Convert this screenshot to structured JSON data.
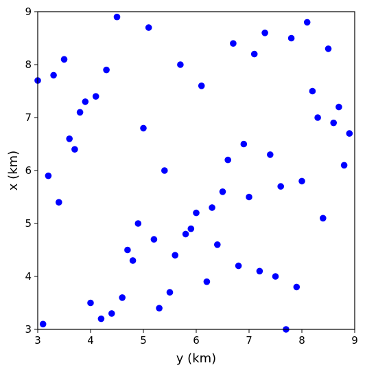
{
  "chart_data": {
    "type": "scatter",
    "title": "",
    "xlabel": "y (km)",
    "ylabel": "x (km)",
    "xlim": [
      3,
      9
    ],
    "ylim": [
      3,
      9
    ],
    "xticks": [
      3,
      4,
      5,
      6,
      7,
      8,
      9
    ],
    "yticks": [
      3,
      4,
      5,
      6,
      7,
      8,
      9
    ],
    "grid": false,
    "legend": "none",
    "marker_color": "#0000ff",
    "points": [
      {
        "x": 3.0,
        "y": 7.7
      },
      {
        "x": 3.1,
        "y": 3.1
      },
      {
        "x": 3.2,
        "y": 5.9
      },
      {
        "x": 3.3,
        "y": 7.8
      },
      {
        "x": 3.4,
        "y": 5.4
      },
      {
        "x": 3.5,
        "y": 8.1
      },
      {
        "x": 3.6,
        "y": 6.6
      },
      {
        "x": 3.7,
        "y": 6.4
      },
      {
        "x": 3.8,
        "y": 7.1
      },
      {
        "x": 3.9,
        "y": 7.3
      },
      {
        "x": 4.0,
        "y": 3.5
      },
      {
        "x": 4.1,
        "y": 7.4
      },
      {
        "x": 4.2,
        "y": 3.2
      },
      {
        "x": 4.3,
        "y": 7.9
      },
      {
        "x": 4.4,
        "y": 3.3
      },
      {
        "x": 4.5,
        "y": 8.9
      },
      {
        "x": 4.6,
        "y": 3.6
      },
      {
        "x": 4.7,
        "y": 4.5
      },
      {
        "x": 4.8,
        "y": 4.3
      },
      {
        "x": 4.9,
        "y": 5.0
      },
      {
        "x": 5.0,
        "y": 6.8
      },
      {
        "x": 5.1,
        "y": 8.7
      },
      {
        "x": 5.2,
        "y": 4.7
      },
      {
        "x": 5.3,
        "y": 3.4
      },
      {
        "x": 5.4,
        "y": 6.0
      },
      {
        "x": 5.5,
        "y": 3.7
      },
      {
        "x": 5.6,
        "y": 4.4
      },
      {
        "x": 5.7,
        "y": 8.0
      },
      {
        "x": 5.8,
        "y": 4.8
      },
      {
        "x": 5.9,
        "y": 4.9
      },
      {
        "x": 6.0,
        "y": 5.2
      },
      {
        "x": 6.1,
        "y": 7.6
      },
      {
        "x": 6.2,
        "y": 3.9
      },
      {
        "x": 6.3,
        "y": 5.3
      },
      {
        "x": 6.4,
        "y": 4.6
      },
      {
        "x": 6.5,
        "y": 5.6
      },
      {
        "x": 6.6,
        "y": 6.2
      },
      {
        "x": 6.7,
        "y": 8.4
      },
      {
        "x": 6.8,
        "y": 4.2
      },
      {
        "x": 6.9,
        "y": 6.5
      },
      {
        "x": 7.0,
        "y": 5.5
      },
      {
        "x": 7.1,
        "y": 8.2
      },
      {
        "x": 7.2,
        "y": 4.1
      },
      {
        "x": 7.3,
        "y": 8.6
      },
      {
        "x": 7.4,
        "y": 6.3
      },
      {
        "x": 7.5,
        "y": 4.0
      },
      {
        "x": 7.6,
        "y": 5.7
      },
      {
        "x": 7.7,
        "y": 3.0
      },
      {
        "x": 7.8,
        "y": 8.5
      },
      {
        "x": 7.9,
        "y": 3.8
      },
      {
        "x": 8.0,
        "y": 5.8
      },
      {
        "x": 8.1,
        "y": 8.8
      },
      {
        "x": 8.2,
        "y": 7.5
      },
      {
        "x": 8.3,
        "y": 7.0
      },
      {
        "x": 8.4,
        "y": 5.1
      },
      {
        "x": 8.5,
        "y": 8.3
      },
      {
        "x": 8.6,
        "y": 6.9
      },
      {
        "x": 8.7,
        "y": 7.2
      },
      {
        "x": 8.8,
        "y": 6.1
      },
      {
        "x": 8.9,
        "y": 6.7
      }
    ]
  }
}
